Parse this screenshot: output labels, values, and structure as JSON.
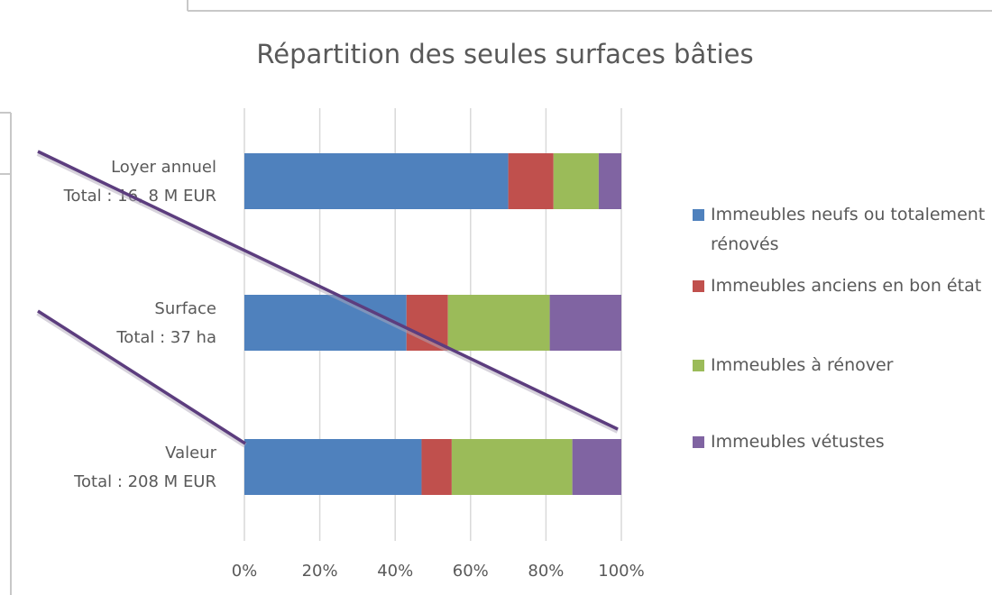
{
  "chart_data": {
    "type": "bar",
    "orientation": "horizontal",
    "stacked": true,
    "title": "Répartition des seules surfaces bâties",
    "categories": [
      [
        "Loyer annuel",
        "Total : 16, 8 M EUR"
      ],
      [
        "Surface",
        "Total : 37 ha"
      ],
      [
        "Valeur",
        "Total : 208 M EUR"
      ]
    ],
    "series": [
      {
        "name": "Immeubles neufs ou totalement rénovés",
        "color": "#4f81bd",
        "values": [
          70,
          43,
          47
        ]
      },
      {
        "name": "Immeubles anciens en bon état",
        "color": "#c0504d",
        "values": [
          12,
          11,
          8
        ]
      },
      {
        "name": "Immeubles à rénover",
        "color": "#9bbb59",
        "values": [
          12,
          27,
          32
        ]
      },
      {
        "name": "Immeubles vétustes",
        "color": "#8064a2",
        "values": [
          6,
          19,
          13
        ]
      }
    ],
    "xlim": [
      0,
      100
    ],
    "xticks": [
      {
        "value": 0,
        "label": "0%"
      },
      {
        "value": 20,
        "label": "20%"
      },
      {
        "value": 40,
        "label": "40%"
      },
      {
        "value": 60,
        "label": "60%"
      },
      {
        "value": 80,
        "label": "80%"
      },
      {
        "value": 100,
        "label": "100%"
      }
    ],
    "grid": true,
    "legend": "right"
  }
}
